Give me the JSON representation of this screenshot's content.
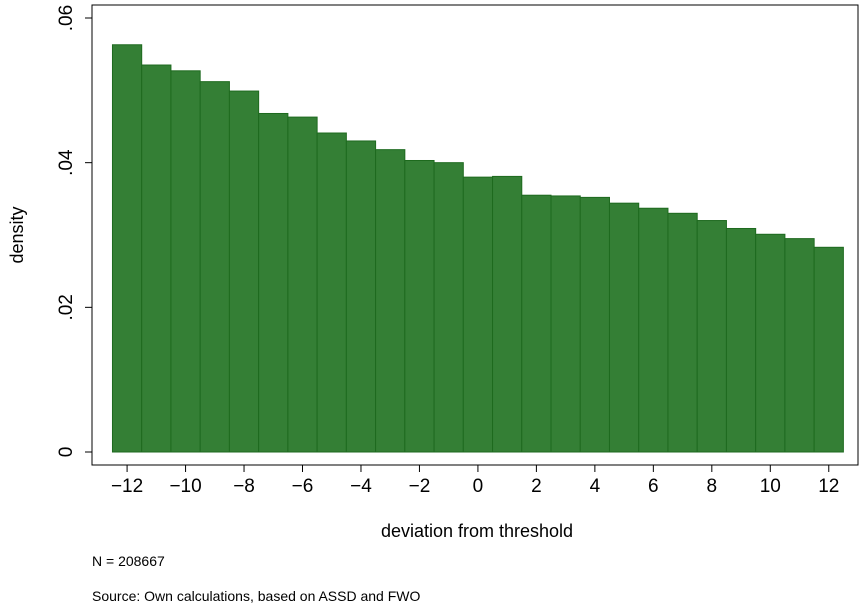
{
  "chart_data": {
    "type": "bar",
    "title": "",
    "xlabel": "deviation from threshold",
    "ylabel": "density",
    "x": [
      -12,
      -11,
      -10,
      -9,
      -8,
      -7,
      -6,
      -5,
      -4,
      -3,
      -2,
      -1,
      0,
      1,
      2,
      3,
      4,
      5,
      6,
      7,
      8,
      9,
      10,
      11,
      12
    ],
    "values": [
      0.0563,
      0.0535,
      0.0527,
      0.0512,
      0.0499,
      0.0468,
      0.0463,
      0.0441,
      0.043,
      0.0418,
      0.0403,
      0.04,
      0.038,
      0.0381,
      0.0355,
      0.0354,
      0.0352,
      0.0344,
      0.0337,
      0.033,
      0.032,
      0.0309,
      0.0301,
      0.0295,
      0.0283
    ],
    "xlim": [
      -13.2,
      13.0
    ],
    "ylim": [
      0,
      0.06
    ],
    "x_ticks": [
      -12,
      -10,
      -8,
      -6,
      -4,
      -2,
      0,
      2,
      4,
      6,
      8,
      10,
      12
    ],
    "x_tick_labels": [
      "−12",
      "−10",
      "−8",
      "−6",
      "−4",
      "−2",
      "0",
      "2",
      "4",
      "6",
      "8",
      "10",
      "12"
    ],
    "y_ticks": [
      0,
      0.02,
      0.04,
      0.06
    ],
    "y_tick_labels": [
      "0",
      ".02",
      ".04",
      ".06"
    ],
    "grid": false,
    "bar_color": "#347f35",
    "bar_edge_color": "#1e6a1f"
  },
  "notes": {
    "n": "N = 208667",
    "source": "Source: Own calculations, based on ASSD and FWO"
  }
}
